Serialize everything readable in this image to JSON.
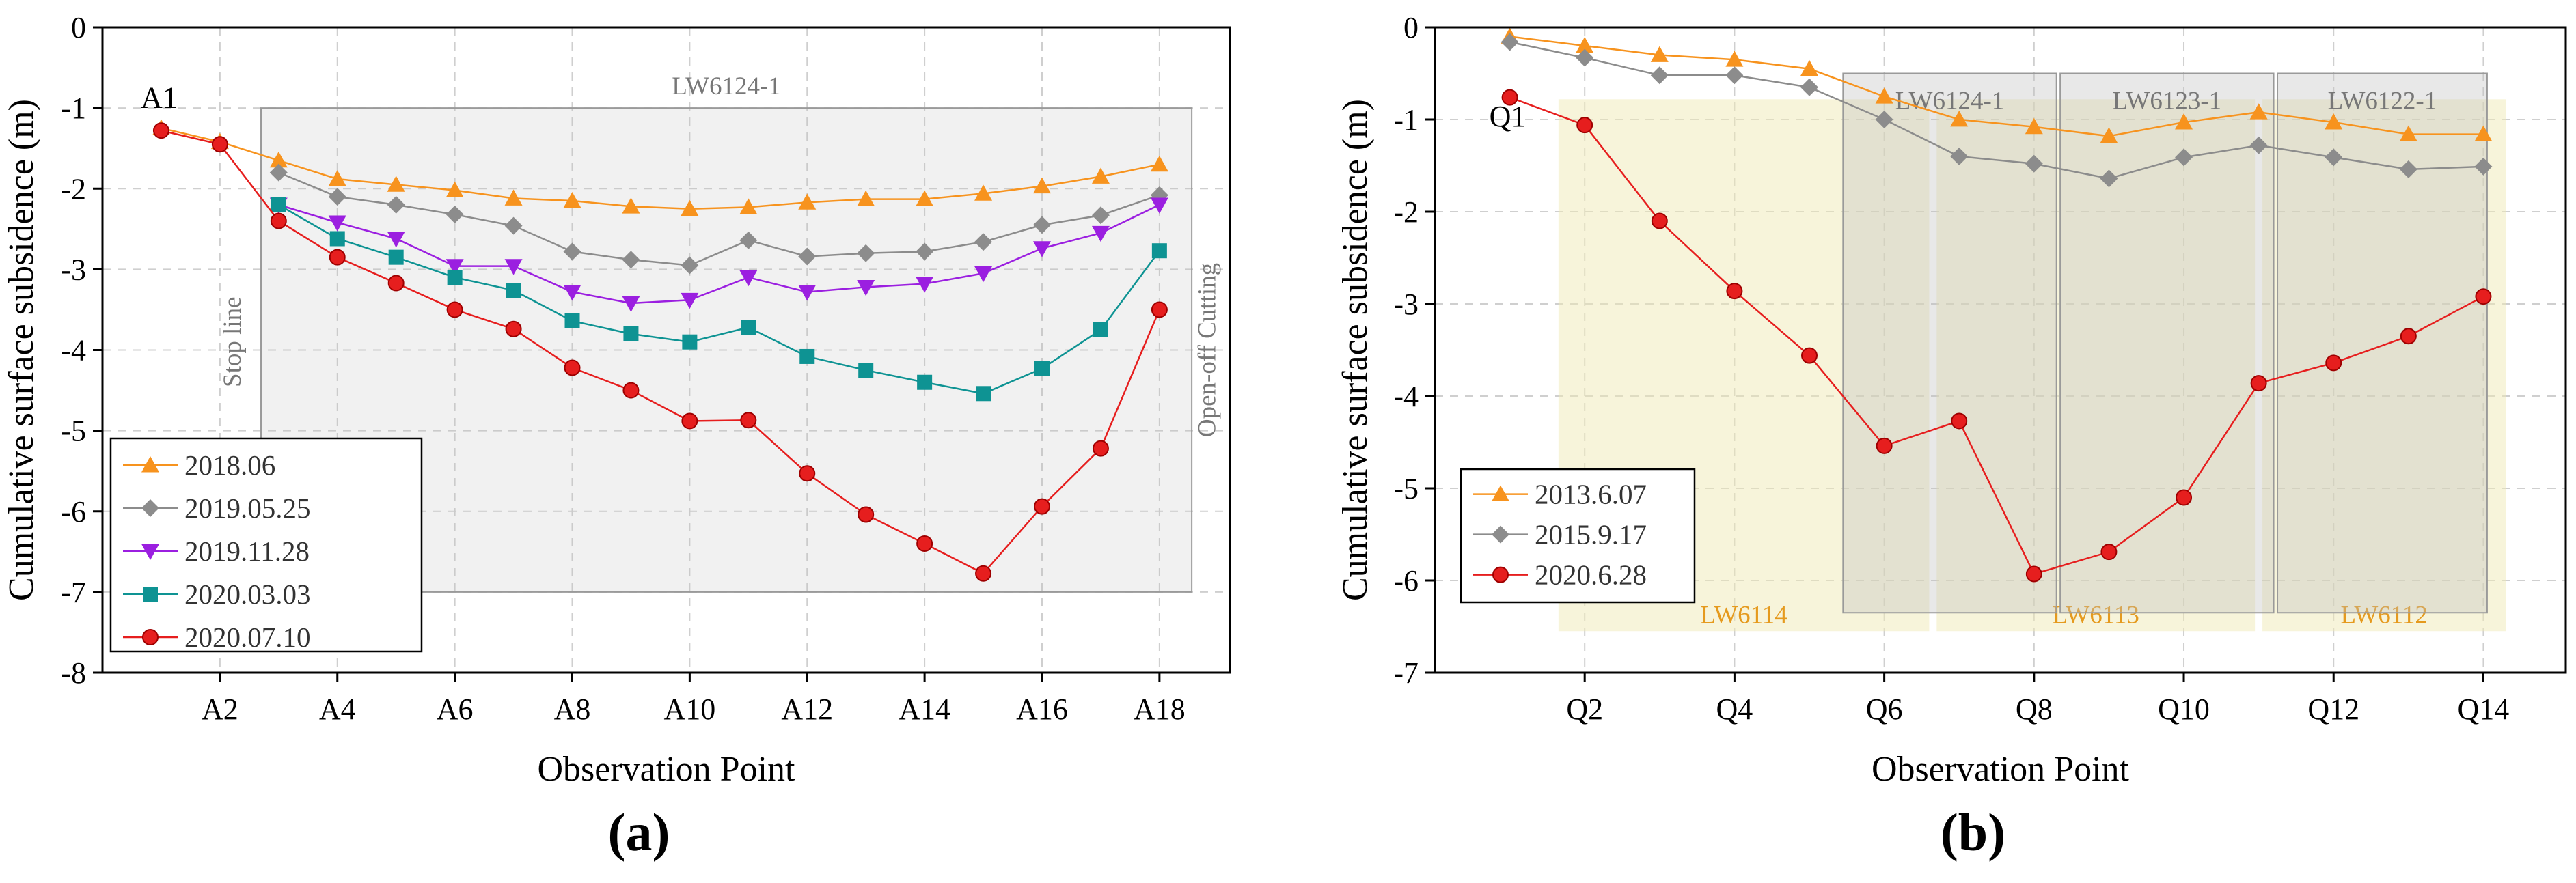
{
  "colors": {
    "orange": "#F7931E",
    "gray": "#8C8C8C",
    "purple": "#9B1FE0",
    "teal": "#0E9393",
    "red": "#E61E1E",
    "shade_gray": "#BDBDBD",
    "shade_yellow": "#EFE9B6",
    "annotation_gray": "#777777",
    "annotation_yellow": "#E59A1E"
  },
  "chart_data": [
    {
      "type": "line",
      "panel_label": "(a)",
      "xlabel": "Observation Point",
      "ylabel": "Cumulative surface subsidence (m)",
      "ylim": [
        -8,
        0
      ],
      "xlim": [
        0,
        19.2
      ],
      "yticks": [
        0,
        -1,
        -2,
        -3,
        -4,
        -5,
        -6,
        -7,
        -8
      ],
      "ytick_labels": [
        "0",
        "-1",
        "-2",
        "-3",
        "-4",
        "-5",
        "-6",
        "-7",
        "-8"
      ],
      "xtick_labels": [
        {
          "x": 2,
          "label": "A2"
        },
        {
          "x": 4,
          "label": "A4"
        },
        {
          "x": 6,
          "label": "A6"
        },
        {
          "x": 8,
          "label": "A8"
        },
        {
          "x": 10,
          "label": "A10"
        },
        {
          "x": 12,
          "label": "A12"
        },
        {
          "x": 14,
          "label": "A14"
        },
        {
          "x": 16,
          "label": "A16"
        },
        {
          "x": 18,
          "label": "A18"
        }
      ],
      "grid": true,
      "legend_position": "bottom-left",
      "start_label": "A1",
      "regions": [
        {
          "label": "LW6124-1",
          "x0": 2.7,
          "x1": 18.55,
          "y0": -1.0,
          "y1": -7.0,
          "color": "gray"
        }
      ],
      "annotations": [
        {
          "text": "Stop line",
          "x": 2.35,
          "y": -3.9
        },
        {
          "text": "Open-off Cutting",
          "x": 18.95,
          "y": -4.0
        }
      ],
      "series": [
        {
          "name": "2018.06",
          "color": "orange",
          "marker": "triangle-up",
          "x": [
            1,
            2,
            3,
            4,
            5,
            6,
            7,
            8,
            9,
            10,
            11,
            12,
            13,
            14,
            15,
            16,
            17,
            18
          ],
          "values": [
            -1.25,
            -1.42,
            -1.65,
            -1.88,
            -1.95,
            -2.02,
            -2.12,
            -2.15,
            -2.22,
            -2.25,
            -2.23,
            -2.17,
            -2.13,
            -2.13,
            -2.06,
            -1.97,
            -1.85,
            -1.7
          ]
        },
        {
          "name": "2019.05.25",
          "color": "gray",
          "marker": "diamond",
          "x": [
            3,
            4,
            5,
            6,
            7,
            8,
            9,
            10,
            11,
            12,
            13,
            14,
            15,
            16,
            17,
            18
          ],
          "values": [
            -1.8,
            -2.1,
            -2.2,
            -2.32,
            -2.46,
            -2.78,
            -2.88,
            -2.95,
            -2.64,
            -2.84,
            -2.8,
            -2.78,
            -2.66,
            -2.45,
            -2.33,
            -2.08
          ]
        },
        {
          "name": "2019.11.28",
          "color": "purple",
          "marker": "triangle-down",
          "x": [
            3,
            4,
            5,
            6,
            7,
            8,
            9,
            10,
            11,
            12,
            13,
            14,
            15,
            16,
            17,
            18
          ],
          "values": [
            -2.2,
            -2.42,
            -2.62,
            -2.96,
            -2.96,
            -3.28,
            -3.42,
            -3.38,
            -3.1,
            -3.28,
            -3.22,
            -3.18,
            -3.05,
            -2.74,
            -2.55,
            -2.2
          ]
        },
        {
          "name": "2020.03.03",
          "color": "teal",
          "marker": "square",
          "x": [
            3,
            4,
            5,
            6,
            7,
            8,
            9,
            10,
            11,
            12,
            13,
            14,
            15,
            16,
            17,
            18
          ],
          "values": [
            -2.2,
            -2.62,
            -2.85,
            -3.1,
            -3.26,
            -3.64,
            -3.8,
            -3.9,
            -3.72,
            -4.08,
            -4.25,
            -4.4,
            -4.54,
            -4.23,
            -3.75,
            -2.77
          ]
        },
        {
          "name": "2020.07.10",
          "color": "red",
          "marker": "circle",
          "x": [
            1,
            2,
            3,
            4,
            5,
            6,
            7,
            8,
            9,
            10,
            11,
            12,
            13,
            14,
            15,
            16,
            17,
            18
          ],
          "values": [
            -1.28,
            -1.45,
            -2.4,
            -2.85,
            -3.17,
            -3.5,
            -3.74,
            -4.22,
            -4.5,
            -4.88,
            -4.87,
            -5.53,
            -6.04,
            -6.4,
            -6.77,
            -5.94,
            -5.22,
            -3.5
          ]
        }
      ]
    },
    {
      "type": "line",
      "panel_label": "(b)",
      "xlabel": "Observation Point",
      "ylabel": "Cumulative surface subsidence (m)",
      "ylim": [
        -7,
        0
      ],
      "xlim": [
        0,
        15.1
      ],
      "yticks": [
        0,
        -1,
        -2,
        -3,
        -4,
        -5,
        -6,
        -7
      ],
      "ytick_labels": [
        "0",
        "-1",
        "-2",
        "-3",
        "-4",
        "-5",
        "-6",
        "-7"
      ],
      "xtick_labels": [
        {
          "x": 2,
          "label": "Q2"
        },
        {
          "x": 4,
          "label": "Q4"
        },
        {
          "x": 6,
          "label": "Q6"
        },
        {
          "x": 8,
          "label": "Q8"
        },
        {
          "x": 10,
          "label": "Q10"
        },
        {
          "x": 12,
          "label": "Q12"
        },
        {
          "x": 14,
          "label": "Q14"
        }
      ],
      "grid": true,
      "legend_position": "bottom-left",
      "start_label": "Q1",
      "regions": [
        {
          "label": "LW6114",
          "x0": 1.65,
          "x1": 6.6,
          "y0": -0.78,
          "y1": -6.55,
          "color": "yellow",
          "label_pos": "bottom"
        },
        {
          "label": "LW6113",
          "x0": 6.7,
          "x1": 10.95,
          "y0": -0.78,
          "y1": -6.55,
          "color": "yellow",
          "label_pos": "bottom"
        },
        {
          "label": "LW6112",
          "x0": 11.05,
          "x1": 14.3,
          "y0": -0.78,
          "y1": -6.55,
          "color": "yellow",
          "label_pos": "bottom"
        },
        {
          "label": "LW6124-1",
          "x0": 5.45,
          "x1": 8.3,
          "y0": -0.5,
          "y1": -6.35,
          "color": "gray",
          "label_pos": "top"
        },
        {
          "label": "LW6123-1",
          "x0": 8.35,
          "x1": 11.2,
          "y0": -0.5,
          "y1": -6.35,
          "color": "gray",
          "label_pos": "top"
        },
        {
          "label": "LW6122-1",
          "x0": 11.25,
          "x1": 14.05,
          "y0": -0.5,
          "y1": -6.35,
          "color": "gray",
          "label_pos": "top"
        }
      ],
      "annotations": [],
      "series": [
        {
          "name": "2013.6.07",
          "color": "orange",
          "marker": "triangle-up",
          "x": [
            1,
            2,
            3,
            4,
            5,
            6,
            7,
            8,
            9,
            10,
            11,
            12,
            13,
            14
          ],
          "values": [
            -0.1,
            -0.2,
            -0.3,
            -0.35,
            -0.45,
            -0.75,
            -1.0,
            -1.08,
            -1.18,
            -1.03,
            -0.92,
            -1.03,
            -1.16,
            -1.16
          ]
        },
        {
          "name": "2015.9.17",
          "color": "gray",
          "marker": "diamond",
          "x": [
            1,
            2,
            3,
            4,
            5,
            6,
            7,
            8,
            9,
            10,
            11,
            12,
            13,
            14
          ],
          "values": [
            -0.16,
            -0.33,
            -0.52,
            -0.52,
            -0.65,
            -1.0,
            -1.4,
            -1.48,
            -1.64,
            -1.41,
            -1.28,
            -1.41,
            -1.54,
            -1.51
          ]
        },
        {
          "name": "2020.6.28",
          "color": "red",
          "marker": "circle",
          "x": [
            1,
            2,
            3,
            4,
            5,
            6,
            7,
            8,
            9,
            10,
            11,
            12,
            13,
            14
          ],
          "values": [
            -0.76,
            -1.06,
            -2.1,
            -2.86,
            -3.56,
            -4.54,
            -4.27,
            -5.93,
            -5.69,
            -5.1,
            -3.86,
            -3.64,
            -3.35,
            -2.92
          ]
        }
      ]
    }
  ]
}
